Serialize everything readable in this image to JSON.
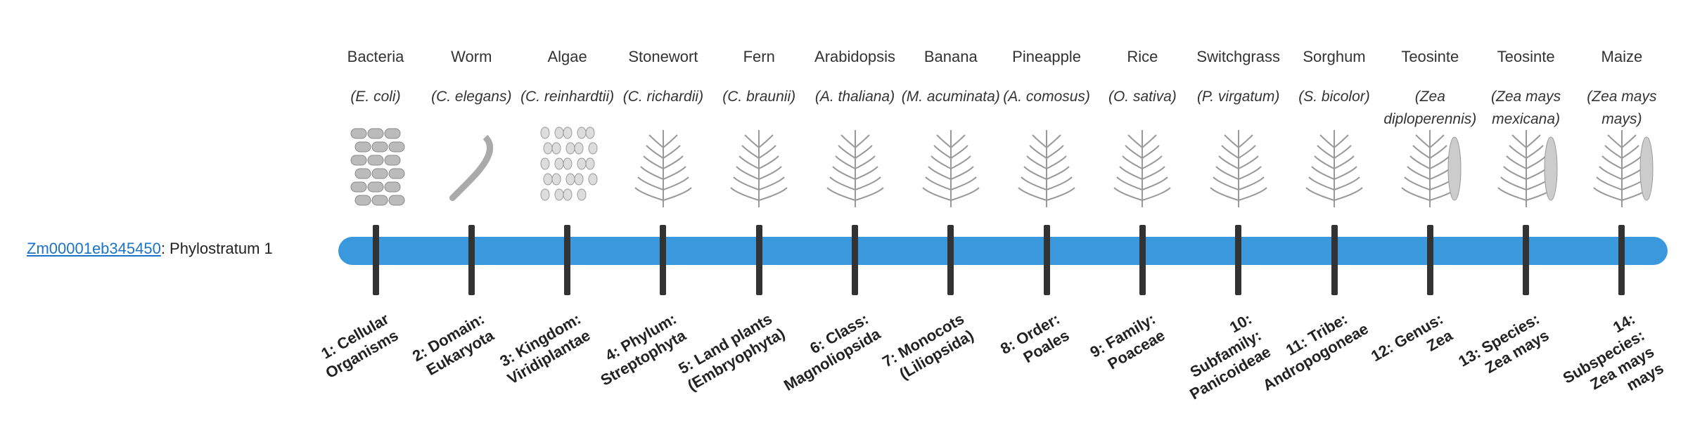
{
  "gene": {
    "id": "Zm00001eb345450",
    "stratum": ": Phylostratum 1"
  },
  "organisms": [
    {
      "common": "Bacteria",
      "scientific": "(E. coli)",
      "stratum": "1: Cellular Organisms"
    },
    {
      "common": "Worm",
      "scientific": "(C. elegans)",
      "stratum": "2: Domain: Eukaryota"
    },
    {
      "common": "Algae",
      "scientific": "(C. reinhardtii)",
      "stratum": "3: Kingdom: Viridiplantae"
    },
    {
      "common": "Stonewort",
      "scientific": "(C. richardii)",
      "stratum": "4: Phylum: Streptophyta"
    },
    {
      "common": "Fern",
      "scientific": "(C. braunii)",
      "stratum": "5: Land plants (Embryophyta)"
    },
    {
      "common": "Arabidopsis",
      "scientific": "(A. thaliana)",
      "stratum": "6: Class: Magnoliopsida"
    },
    {
      "common": "Banana",
      "scientific": "(M. acuminata)",
      "stratum": "7: Monocots (Liliopsida)"
    },
    {
      "common": "Pineapple",
      "scientific": "(A. comosus)",
      "stratum": "8: Order: Poales"
    },
    {
      "common": "Rice",
      "scientific": "(O. sativa)",
      "stratum": "9: Family: Poaceae"
    },
    {
      "common": "Switchgrass",
      "scientific": "(P. virgatum)",
      "stratum": "10: Subfamily: Panicoideae"
    },
    {
      "common": "Sorghum",
      "scientific": "(S. bicolor)",
      "stratum": "11: Tribe: Andropogoneae"
    },
    {
      "common": "Teosinte",
      "scientific": "(Zea diploperennis)",
      "stratum": "12: Genus: Zea"
    },
    {
      "common": "Teosinte",
      "scientific": "(Zea mays mexicana)",
      "stratum": "13: Species: Zea mays"
    },
    {
      "common": "Maize",
      "scientific": "(Zea mays mays)",
      "stratum": "14: Subspecies: Zea mays mays"
    }
  ]
}
